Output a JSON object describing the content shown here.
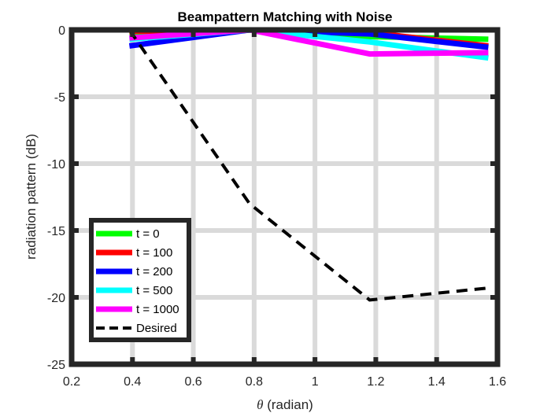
{
  "chart_data": {
    "type": "line",
    "title": "Beampattern Matching with Noise",
    "xlabel_symbol": "θ",
    "xlabel_unit": " (radian)",
    "ylabel": "radiation pattern (dB)",
    "xlim": [
      0.2,
      1.6
    ],
    "ylim": [
      -25,
      0
    ],
    "xticks": [
      0.2,
      0.4,
      0.6,
      0.8,
      1,
      1.2,
      1.4,
      1.6
    ],
    "xtick_labels": [
      "0.2",
      "0.4",
      "0.6",
      "0.8",
      "1",
      "1.2",
      "1.4",
      "1.6"
    ],
    "yticks": [
      0,
      -5,
      -10,
      -15,
      -20,
      -25
    ],
    "ytick_labels": [
      "0",
      "-5",
      "-10",
      "-15",
      "-20",
      "-25"
    ],
    "grid": true,
    "legend_location": "bottom-left",
    "series": [
      {
        "name": "t = 0",
        "color": "#00ff00",
        "style": "solid",
        "x": [
          0.39,
          0.785,
          1.18,
          1.57
        ],
        "y": [
          -0.2,
          0,
          -0.5,
          -0.7
        ]
      },
      {
        "name": "t = 100",
        "color": "#ff0000",
        "style": "solid",
        "x": [
          0.39,
          0.785,
          1.18,
          1.57
        ],
        "y": [
          -0.1,
          0,
          -0.2,
          -1.2
        ]
      },
      {
        "name": "t = 200",
        "color": "#0000ff",
        "style": "solid",
        "x": [
          0.39,
          0.785,
          1.18,
          1.57
        ],
        "y": [
          -1.2,
          0,
          -0.3,
          -1.3
        ]
      },
      {
        "name": "t = 500",
        "color": "#00ffff",
        "style": "solid",
        "x": [
          0.39,
          0.785,
          1.18,
          1.57
        ],
        "y": [
          -0.7,
          0,
          -0.9,
          -2.1
        ]
      },
      {
        "name": "t = 1000",
        "color": "#ff00ff",
        "style": "solid",
        "x": [
          0.39,
          0.785,
          1.18,
          1.57
        ],
        "y": [
          -0.6,
          0,
          -1.8,
          -1.7
        ]
      },
      {
        "name": "Desired",
        "color": "#000000",
        "style": "dashed",
        "x": [
          0.39,
          0.785,
          1.18,
          1.57
        ],
        "y": [
          0,
          -13,
          -20.2,
          -19.3
        ]
      }
    ]
  }
}
